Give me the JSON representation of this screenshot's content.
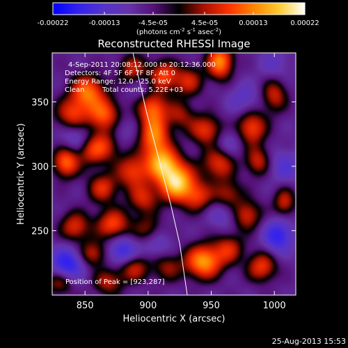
{
  "chart_data": {
    "type": "heatmap",
    "title": "Reconstructed RHESSI Image",
    "xlabel": "Heliocentric X (arcsec)",
    "ylabel": "Heliocentric Y (arcsec)",
    "xlim": [
      824,
      1017
    ],
    "ylim": [
      200,
      388
    ],
    "x_ticks": [
      {
        "value": 850,
        "label": "850"
      },
      {
        "value": 900,
        "label": "900"
      },
      {
        "value": 950,
        "label": "950"
      },
      {
        "value": 1000,
        "label": "1000"
      }
    ],
    "y_ticks": [
      {
        "value": 250,
        "label": "250"
      },
      {
        "value": 300,
        "label": "300"
      },
      {
        "value": 350,
        "label": "350"
      }
    ],
    "colorbar": {
      "range": [
        -0.00022,
        0.00022
      ],
      "ticks": [
        {
          "value": -0.00022,
          "label": "-0.00022"
        },
        {
          "value": -0.00013,
          "label": "-0.00013"
        },
        {
          "value": -4.5e-05,
          "label": "-4.5e-05"
        },
        {
          "value": 4.5e-05,
          "label": "4.5e-05"
        },
        {
          "value": 0.00013,
          "label": "0.00013"
        },
        {
          "value": 0.00022,
          "label": "0.00022"
        }
      ],
      "unit_label": "(photons cm",
      "unit_exp1": "-2",
      "unit_mid": " s",
      "unit_exp2": "-1",
      "unit_mid2": " asec",
      "unit_exp3": "-2",
      "unit_end": ")",
      "colors": [
        "#0000ff",
        "#3322ee",
        "#5533cc",
        "#6633aa",
        "#551177",
        "#000000",
        "#aa1100",
        "#ff3300",
        "#ff8800",
        "#ffcc33",
        "#ffffff"
      ]
    },
    "annotations": {
      "line1": "4-Sep-2011 20:08:12.000 to 20:12:36.000",
      "line2": "Detectors: 4F 5F 6F 7F 8F, Att 0",
      "line3": "Energy Range: 12.0 - 25.0 keV",
      "line4_a": "Clean",
      "line4_b": "Total counts: 5.22E+03",
      "peak": "Position of Peak = [923,287]"
    },
    "limb_curve": [
      [
        888,
        388
      ],
      [
        898,
        345
      ],
      [
        910,
        300
      ],
      [
        918,
        270
      ],
      [
        925,
        240
      ],
      [
        931,
        200
      ]
    ],
    "peak": [
      923,
      287
    ],
    "blobs": [
      {
        "x": 852,
        "y": 358,
        "a": 0.7,
        "sx": 9,
        "sy": 9
      },
      {
        "x": 840,
        "y": 340,
        "a": 0.55,
        "sx": 9,
        "sy": 9
      },
      {
        "x": 865,
        "y": 340,
        "a": 0.65,
        "sx": 9,
        "sy": 9
      },
      {
        "x": 868,
        "y": 318,
        "a": 0.5,
        "sx": 9,
        "sy": 9
      },
      {
        "x": 835,
        "y": 303,
        "a": 0.7,
        "sx": 7,
        "sy": 8
      },
      {
        "x": 855,
        "y": 312,
        "a": 0.45,
        "sx": 8,
        "sy": 8
      },
      {
        "x": 888,
        "y": 296,
        "a": 0.55,
        "sx": 9,
        "sy": 9
      },
      {
        "x": 896,
        "y": 275,
        "a": 0.45,
        "sx": 8,
        "sy": 8
      },
      {
        "x": 864,
        "y": 283,
        "a": 0.5,
        "sx": 8,
        "sy": 8
      },
      {
        "x": 872,
        "y": 255,
        "a": 0.6,
        "sx": 9,
        "sy": 8
      },
      {
        "x": 842,
        "y": 253,
        "a": 0.5,
        "sx": 8,
        "sy": 8
      },
      {
        "x": 856,
        "y": 232,
        "a": 0.45,
        "sx": 8,
        "sy": 7
      },
      {
        "x": 888,
        "y": 222,
        "a": 0.5,
        "sx": 9,
        "sy": 8
      },
      {
        "x": 868,
        "y": 210,
        "a": 0.4,
        "sx": 8,
        "sy": 7
      },
      {
        "x": 900,
        "y": 250,
        "a": 0.4,
        "sx": 8,
        "sy": 8
      },
      {
        "x": 923,
        "y": 287,
        "a": 1.0,
        "sx": 10,
        "sy": 10
      },
      {
        "x": 912,
        "y": 302,
        "a": 0.8,
        "sx": 9,
        "sy": 9
      },
      {
        "x": 905,
        "y": 323,
        "a": 0.75,
        "sx": 8,
        "sy": 11
      },
      {
        "x": 903,
        "y": 346,
        "a": 0.65,
        "sx": 8,
        "sy": 9
      },
      {
        "x": 912,
        "y": 370,
        "a": 0.6,
        "sx": 8,
        "sy": 8
      },
      {
        "x": 888,
        "y": 375,
        "a": 0.45,
        "sx": 8,
        "sy": 8
      },
      {
        "x": 932,
        "y": 366,
        "a": 0.45,
        "sx": 8,
        "sy": 8
      },
      {
        "x": 957,
        "y": 381,
        "a": 0.8,
        "sx": 7,
        "sy": 9
      },
      {
        "x": 946,
        "y": 328,
        "a": 0.55,
        "sx": 9,
        "sy": 8
      },
      {
        "x": 956,
        "y": 303,
        "a": 0.55,
        "sx": 9,
        "sy": 9
      },
      {
        "x": 940,
        "y": 276,
        "a": 0.45,
        "sx": 8,
        "sy": 8
      },
      {
        "x": 963,
        "y": 278,
        "a": 0.4,
        "sx": 8,
        "sy": 8
      },
      {
        "x": 982,
        "y": 330,
        "a": 0.6,
        "sx": 8,
        "sy": 9
      },
      {
        "x": 987,
        "y": 304,
        "a": 0.45,
        "sx": 7,
        "sy": 8
      },
      {
        "x": 1000,
        "y": 355,
        "a": 0.45,
        "sx": 7,
        "sy": 9
      },
      {
        "x": 978,
        "y": 262,
        "a": 0.5,
        "sx": 8,
        "sy": 8
      },
      {
        "x": 944,
        "y": 226,
        "a": 0.85,
        "sx": 10,
        "sy": 9
      },
      {
        "x": 964,
        "y": 236,
        "a": 0.45,
        "sx": 8,
        "sy": 8
      },
      {
        "x": 990,
        "y": 222,
        "a": 0.55,
        "sx": 8,
        "sy": 8
      },
      {
        "x": 1008,
        "y": 272,
        "a": 0.45,
        "sx": 6,
        "sy": 8
      },
      {
        "x": 915,
        "y": 222,
        "a": 0.35,
        "sx": 8,
        "sy": 8
      },
      {
        "x": 830,
        "y": 210,
        "a": 0.4,
        "sx": 8,
        "sy": 7
      },
      {
        "x": 925,
        "y": 340,
        "a": 0.35,
        "sx": 8,
        "sy": 8
      },
      {
        "x": 880,
        "y": 233,
        "a": -0.55,
        "sx": 8,
        "sy": 8
      },
      {
        "x": 836,
        "y": 224,
        "a": -0.6,
        "sx": 9,
        "sy": 9
      },
      {
        "x": 1003,
        "y": 246,
        "a": -0.55,
        "sx": 8,
        "sy": 9
      },
      {
        "x": 875,
        "y": 325,
        "a": -0.3,
        "sx": 9,
        "sy": 9
      },
      {
        "x": 843,
        "y": 323,
        "a": -0.3,
        "sx": 9,
        "sy": 9
      },
      {
        "x": 962,
        "y": 317,
        "a": -0.25,
        "sx": 9,
        "sy": 9
      },
      {
        "x": 976,
        "y": 352,
        "a": -0.25,
        "sx": 9,
        "sy": 9
      },
      {
        "x": 905,
        "y": 240,
        "a": -0.3,
        "sx": 9,
        "sy": 9
      },
      {
        "x": 960,
        "y": 263,
        "a": -0.25,
        "sx": 9,
        "sy": 8
      },
      {
        "x": 1008,
        "y": 300,
        "a": -0.3,
        "sx": 9,
        "sy": 9
      },
      {
        "x": 898,
        "y": 360,
        "a": -0.2,
        "sx": 9,
        "sy": 9
      },
      {
        "x": 1000,
        "y": 380,
        "a": -0.2,
        "sx": 9,
        "sy": 9
      }
    ]
  },
  "footer": {
    "timestamp": "25-Aug-2013 15:53"
  }
}
